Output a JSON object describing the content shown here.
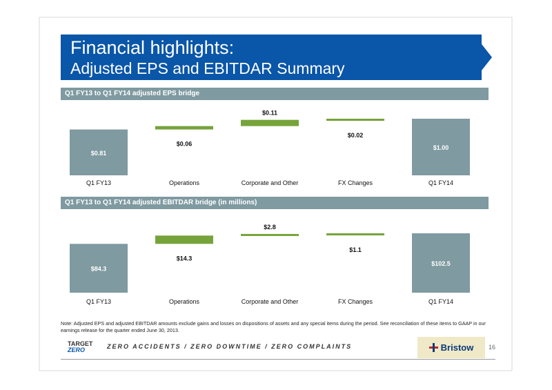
{
  "title": {
    "line1": "Financial highlights:",
    "line2": "Adjusted EPS and EBITDAR Summary"
  },
  "section1": {
    "header": "Q1 FY13 to Q1 FY14 adjusted EPS bridge"
  },
  "section2": {
    "header": "Q1 FY13 to Q1 FY14 adjusted EBITDAR bridge (in millions)"
  },
  "chart_data": [
    {
      "type": "bar",
      "subtype": "waterfall",
      "title": "Q1 FY13 to Q1 FY14 adjusted EPS bridge",
      "categories": [
        "Q1 FY13",
        "Operations",
        "Corporate and Other",
        "FX Changes",
        "Q1 FY14"
      ],
      "values": [
        0.81,
        0.06,
        0.11,
        0.02,
        1.0
      ],
      "labels": [
        "$0.81",
        "$0.06",
        "$0.11",
        "$0.02",
        "$1.00"
      ],
      "bar_kind": [
        "total",
        "increase",
        "increase",
        "increase",
        "total"
      ],
      "colors": {
        "total": "#7f9aa0",
        "increase": "#76a33a"
      }
    },
    {
      "type": "bar",
      "subtype": "waterfall",
      "title": "Q1 FY13 to Q1 FY14 adjusted EBITDAR bridge (in millions)",
      "categories": [
        "Q1 FY13",
        "Operations",
        "Corporate and Other",
        "FX Changes",
        "Q1 FY14"
      ],
      "values": [
        84.3,
        14.3,
        2.8,
        1.1,
        102.5
      ],
      "labels": [
        "$84.3",
        "$14.3",
        "$2.8",
        "$1.1",
        "$102.5"
      ],
      "bar_kind": [
        "total",
        "increase",
        "increase",
        "increase",
        "total"
      ],
      "colors": {
        "total": "#7f9aa0",
        "increase": "#76a33a"
      }
    }
  ],
  "note": "Note: Adjusted EPS and adjusted EBITDAR amounts exclude gains and losses on dispositions of assets and any special items during the period. See reconciliation of these items to GAAP in our earnings release for the quarter ended June 30, 2013.",
  "footer": {
    "target_label": "TARGET",
    "zero_label": "ZERO",
    "tagline": "ZERO ACCIDENTS / ZERO DOWNTIME / ZERO COMPLAINTS",
    "brand": "Bristow",
    "page_number": "16"
  }
}
